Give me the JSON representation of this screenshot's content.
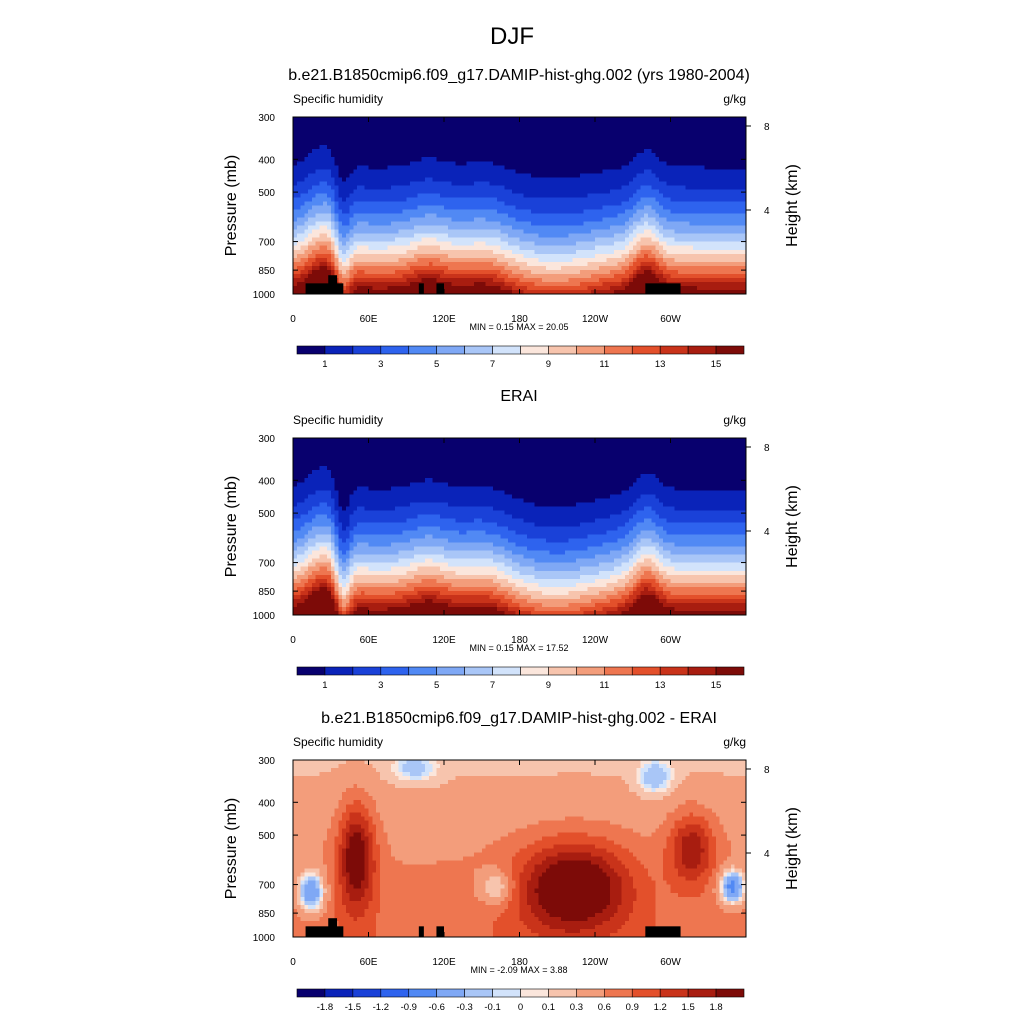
{
  "figure": {
    "title": "DJF"
  },
  "chart_data": [
    {
      "type": "heatmap",
      "title": "b.e21.B1850cmip6.f09_g17.DAMIP-hist-ghg.002 (yrs 1980-2004)",
      "left_string": "Specific humidity",
      "right_string": "g/kg",
      "ylabel": "Pressure (mb)",
      "y2label": "Height (km)",
      "x_ticks": [
        "0",
        "60E",
        "120E",
        "180",
        "120W",
        "60W"
      ],
      "x_tick_lon": [
        0,
        60,
        120,
        180,
        240,
        300
      ],
      "xlim": [
        0,
        360
      ],
      "y_ticks": [
        "300",
        "400",
        "500",
        "700",
        "850",
        "1000"
      ],
      "y_tick_p": [
        300,
        400,
        500,
        700,
        850,
        1000
      ],
      "ylim": [
        1000,
        300
      ],
      "y2_ticks": [
        "8",
        "4"
      ],
      "y2_tick_km": [
        8,
        4
      ],
      "stats": "MIN =   0.15  MAX =  20.05",
      "min": 0.15,
      "max": 20.05,
      "field": "model",
      "topography": true,
      "colorbar": {
        "colors": [
          "#08006e",
          "#0a23b9",
          "#1a41d8",
          "#2e63ee",
          "#5189f4",
          "#7fa8f5",
          "#a9c6f7",
          "#d2e3fb",
          "#fbe6dc",
          "#f7c4ad",
          "#f39d7b",
          "#ee7650",
          "#e3502b",
          "#c9331a",
          "#a81d10",
          "#7d0b08"
        ],
        "labels": [
          "1",
          "3",
          "5",
          "7",
          "9",
          "11",
          "13",
          "15"
        ]
      }
    },
    {
      "type": "heatmap",
      "title": "ERAI",
      "left_string": "Specific humidity",
      "right_string": "g/kg",
      "ylabel": "Pressure (mb)",
      "y2label": "Height (km)",
      "x_ticks": [
        "0",
        "60E",
        "120E",
        "180",
        "120W",
        "60W"
      ],
      "x_tick_lon": [
        0,
        60,
        120,
        180,
        240,
        300
      ],
      "xlim": [
        0,
        360
      ],
      "y_ticks": [
        "300",
        "400",
        "500",
        "700",
        "850",
        "1000"
      ],
      "y_tick_p": [
        300,
        400,
        500,
        700,
        850,
        1000
      ],
      "ylim": [
        1000,
        300
      ],
      "y2_ticks": [
        "8",
        "4"
      ],
      "y2_tick_km": [
        8,
        4
      ],
      "stats": "MIN =   0.15  MAX =  17.52",
      "min": 0.15,
      "max": 17.52,
      "field": "obs",
      "topography": false,
      "colorbar": {
        "colors": [
          "#08006e",
          "#0a23b9",
          "#1a41d8",
          "#2e63ee",
          "#5189f4",
          "#7fa8f5",
          "#a9c6f7",
          "#d2e3fb",
          "#fbe6dc",
          "#f7c4ad",
          "#f39d7b",
          "#ee7650",
          "#e3502b",
          "#c9331a",
          "#a81d10",
          "#7d0b08"
        ],
        "labels": [
          "1",
          "3",
          "5",
          "7",
          "9",
          "11",
          "13",
          "15"
        ]
      }
    },
    {
      "type": "heatmap",
      "title": "b.e21.B1850cmip6.f09_g17.DAMIP-hist-ghg.002 - ERAI",
      "left_string": "Specific humidity",
      "right_string": "g/kg",
      "ylabel": "Pressure (mb)",
      "y2label": "Height (km)",
      "x_ticks": [
        "0",
        "60E",
        "120E",
        "180",
        "120W",
        "60W"
      ],
      "x_tick_lon": [
        0,
        60,
        120,
        180,
        240,
        300
      ],
      "xlim": [
        0,
        360
      ],
      "y_ticks": [
        "300",
        "400",
        "500",
        "700",
        "850",
        "1000"
      ],
      "y_tick_p": [
        300,
        400,
        500,
        700,
        850,
        1000
      ],
      "ylim": [
        1000,
        300
      ],
      "y2_ticks": [
        "8",
        "4"
      ],
      "y2_tick_km": [
        8,
        4
      ],
      "stats": "MIN =  -2.09  MAX =   3.88",
      "min": -2.09,
      "max": 3.88,
      "field": "diff",
      "topography": true,
      "colorbar": {
        "colors": [
          "#08006e",
          "#0a23b9",
          "#1a41d8",
          "#2e63ee",
          "#5189f4",
          "#7fa8f5",
          "#a9c6f7",
          "#d2e3fb",
          "#fbe6dc",
          "#f7c4ad",
          "#f39d7b",
          "#ee7650",
          "#e3502b",
          "#c9331a",
          "#a81d10",
          "#7d0b08"
        ],
        "labels": [
          "-1.8",
          "-1.5",
          "-1.2",
          "-0.9",
          "-0.6",
          "-0.3",
          "-0.1",
          "0",
          "0.1",
          "0.3",
          "0.6",
          "0.9",
          "1.2",
          "1.5",
          "1.8"
        ]
      }
    }
  ]
}
